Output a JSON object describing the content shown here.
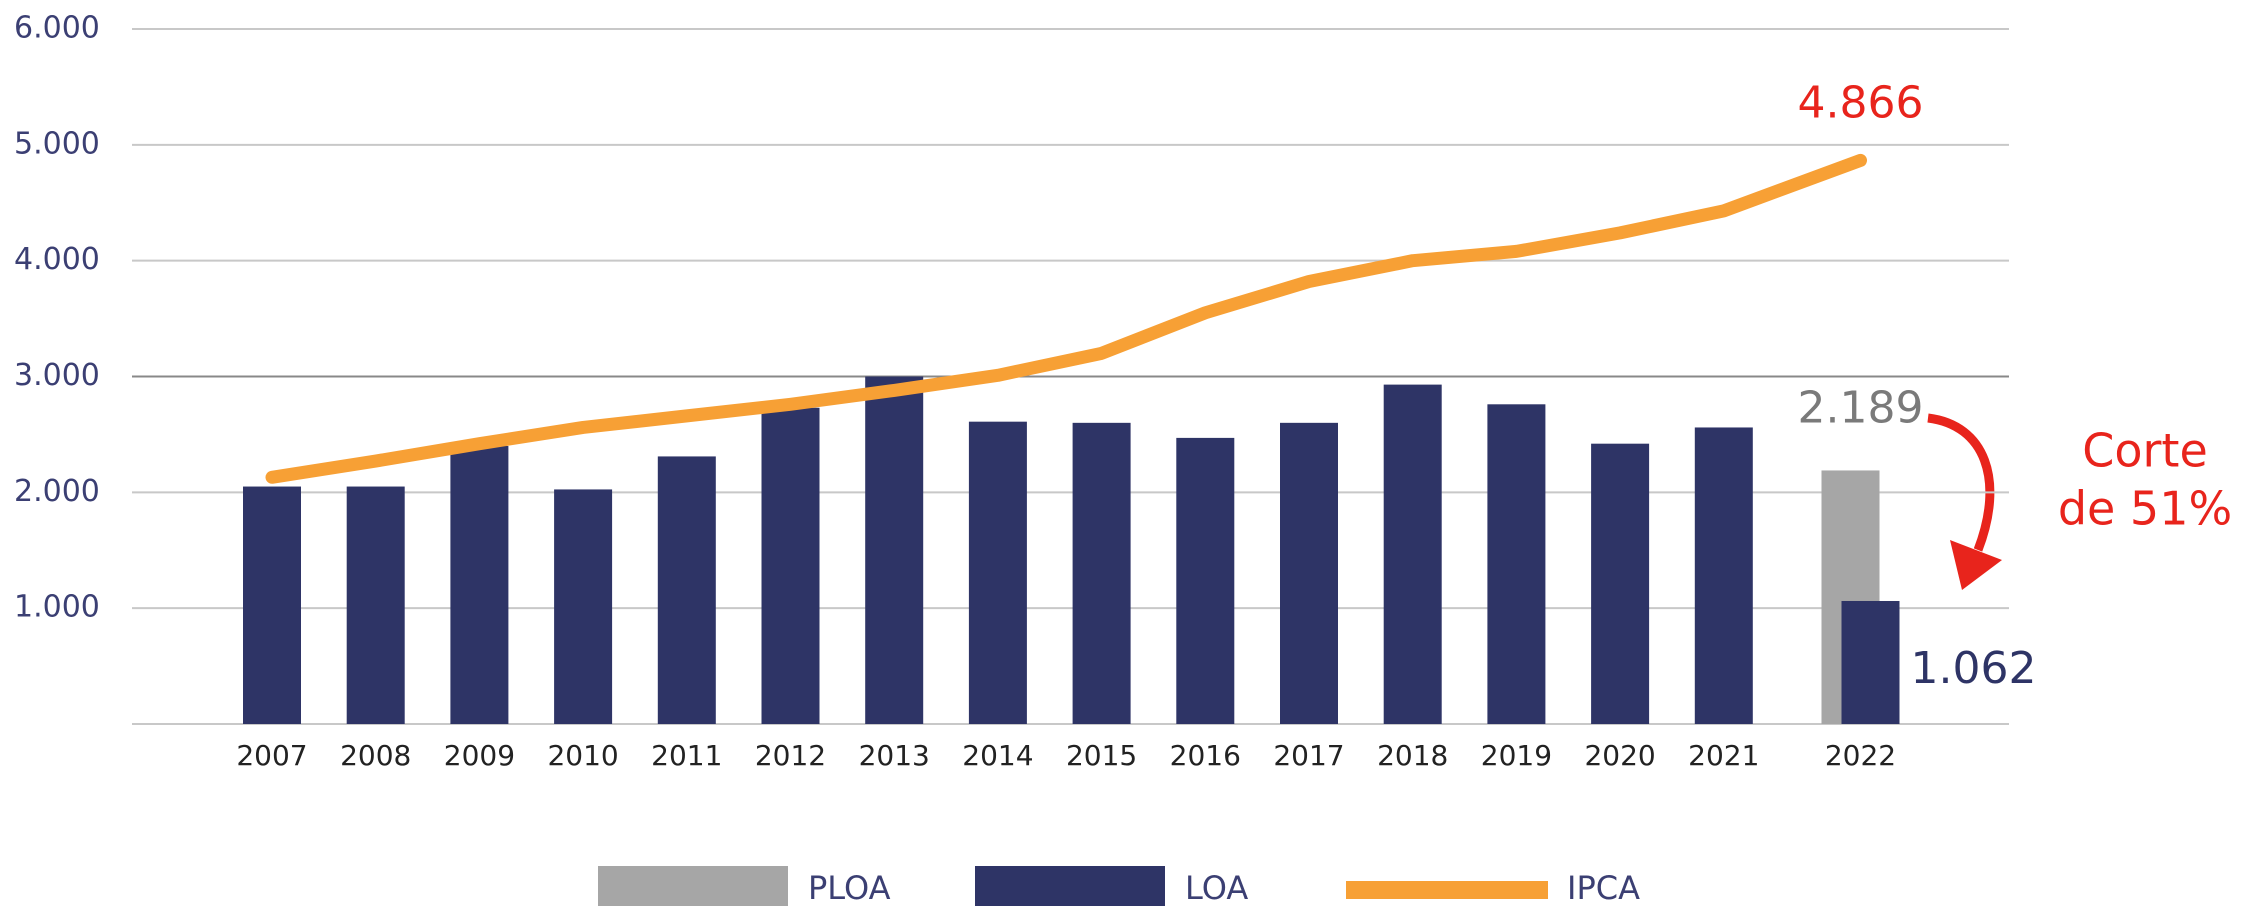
{
  "chart_data": {
    "type": "bar",
    "categories": [
      "2007",
      "2008",
      "2009",
      "2010",
      "2011",
      "2012",
      "2013",
      "2014",
      "2015",
      "2016",
      "2017",
      "2018",
      "2019",
      "2020",
      "2021",
      "2022"
    ],
    "series": [
      {
        "name": "PLOA",
        "color": "#a6a6a6",
        "type": "bar",
        "values": [
          null,
          null,
          null,
          null,
          null,
          null,
          null,
          null,
          null,
          null,
          null,
          null,
          null,
          null,
          null,
          2189
        ],
        "value_labels": [
          null,
          null,
          null,
          null,
          null,
          null,
          null,
          null,
          null,
          null,
          null,
          null,
          null,
          null,
          null,
          "2.189"
        ]
      },
      {
        "name": "LOA",
        "color": "#2e3466",
        "type": "bar",
        "values": [
          2050,
          2050,
          2400,
          2025,
          2310,
          2730,
          3000,
          2610,
          2600,
          2470,
          2600,
          2930,
          2760,
          2420,
          2560,
          1062
        ],
        "value_labels": [
          null,
          null,
          null,
          null,
          null,
          null,
          null,
          null,
          null,
          null,
          null,
          null,
          null,
          null,
          null,
          "1.062"
        ]
      },
      {
        "name": "IPCA",
        "color": "#f7a035",
        "type": "line",
        "values": [
          2130,
          2270,
          2420,
          2560,
          2660,
          2760,
          2880,
          3010,
          3200,
          3550,
          3820,
          4000,
          4080,
          4240,
          4430,
          4866
        ],
        "value_labels": [
          null,
          null,
          null,
          null,
          null,
          null,
          null,
          null,
          null,
          null,
          null,
          null,
          null,
          null,
          null,
          "4.866"
        ]
      }
    ],
    "ylim": [
      0,
      6000
    ],
    "yticks": [
      {
        "value": 1000,
        "label": "1.000"
      },
      {
        "value": 2000,
        "label": "2.000"
      },
      {
        "value": 3000,
        "label": "3.000"
      },
      {
        "value": 4000,
        "label": "4.000"
      },
      {
        "value": 5000,
        "label": "5.000"
      },
      {
        "value": 6000,
        "label": "6.000"
      }
    ],
    "grid": true,
    "legend": "bottom",
    "annotation": [
      "Corte",
      "de 51%"
    ]
  }
}
